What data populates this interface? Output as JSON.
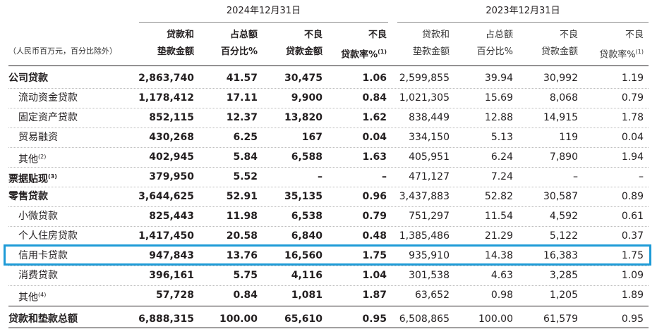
{
  "header": {
    "period_a": "2024年12月31日",
    "period_b": "2023年12月31日",
    "unit_note": "（人民币百万元，百分比除外）",
    "cols_a": [
      {
        "l1": "贷款和",
        "l2": "垫款金额"
      },
      {
        "l1": "占总额",
        "l2": "百分比%"
      },
      {
        "l1": "不良",
        "l2": "贷款金额"
      },
      {
        "l1": "不良",
        "l2": "贷款率%",
        "sup": "(1)"
      }
    ],
    "cols_b": [
      {
        "l1": "贷款和",
        "l2": "垫款金额"
      },
      {
        "l1": "占总额",
        "l2": "百分比%"
      },
      {
        "l1": "不良",
        "l2": "贷款金额"
      },
      {
        "l1": "不良",
        "l2": "贷款率%",
        "sup": "(1)"
      }
    ]
  },
  "rows": [
    {
      "label": "公司贷款",
      "sup": "",
      "v": [
        "2,863,740",
        "41.57",
        "30,475",
        "1.06",
        "2,599,855",
        "39.94",
        "30,992",
        "1.19"
      ]
    },
    {
      "label": "流动资金贷款",
      "sup": "",
      "v": [
        "1,178,412",
        "17.11",
        "9,900",
        "0.84",
        "1,021,305",
        "15.69",
        "8,068",
        "0.79"
      ]
    },
    {
      "label": "固定资产贷款",
      "sup": "",
      "v": [
        "852,115",
        "12.37",
        "13,820",
        "1.62",
        "838,449",
        "12.88",
        "14,915",
        "1.78"
      ]
    },
    {
      "label": "贸易融资",
      "sup": "",
      "v": [
        "430,268",
        "6.25",
        "167",
        "0.04",
        "334,150",
        "5.13",
        "119",
        "0.04"
      ]
    },
    {
      "label": "其他",
      "sup": "(2)",
      "v": [
        "402,945",
        "5.84",
        "6,588",
        "1.63",
        "405,951",
        "6.24",
        "7,890",
        "1.94"
      ]
    },
    {
      "label": "票据贴现",
      "sup": "(3)",
      "v": [
        "379,950",
        "5.52",
        "–",
        "–",
        "471,127",
        "7.24",
        "–",
        "–"
      ]
    },
    {
      "label": "零售贷款",
      "sup": "",
      "v": [
        "3,644,625",
        "52.91",
        "35,135",
        "0.96",
        "3,437,883",
        "52.82",
        "30,587",
        "0.89"
      ]
    },
    {
      "label": "小微贷款",
      "sup": "",
      "v": [
        "825,443",
        "11.98",
        "6,538",
        "0.79",
        "751,297",
        "11.54",
        "4,592",
        "0.61"
      ]
    },
    {
      "label": "个人住房贷款",
      "sup": "",
      "v": [
        "1,417,450",
        "20.58",
        "6,840",
        "0.48",
        "1,385,486",
        "21.29",
        "5,122",
        "0.37"
      ]
    },
    {
      "label": "信用卡贷款",
      "sup": "",
      "v": [
        "947,843",
        "13.76",
        "16,560",
        "1.75",
        "935,910",
        "14.38",
        "16,383",
        "1.75"
      ]
    },
    {
      "label": "消费贷款",
      "sup": "",
      "v": [
        "396,161",
        "5.75",
        "4,116",
        "1.04",
        "301,538",
        "4.63",
        "3,285",
        "1.09"
      ]
    },
    {
      "label": "其他",
      "sup": "(4)",
      "v": [
        "57,728",
        "0.84",
        "1,081",
        "1.87",
        "63,652",
        "0.98",
        "1,205",
        "1.89"
      ]
    },
    {
      "label": "贷款和垫款总额",
      "sup": "",
      "v": [
        "6,888,315",
        "100.00",
        "65,610",
        "0.95",
        "6,508,865",
        "100.00",
        "61,579",
        "0.95"
      ]
    }
  ],
  "highlight": {
    "row_label": "信用卡贷款",
    "color": "#1e9bd7"
  }
}
